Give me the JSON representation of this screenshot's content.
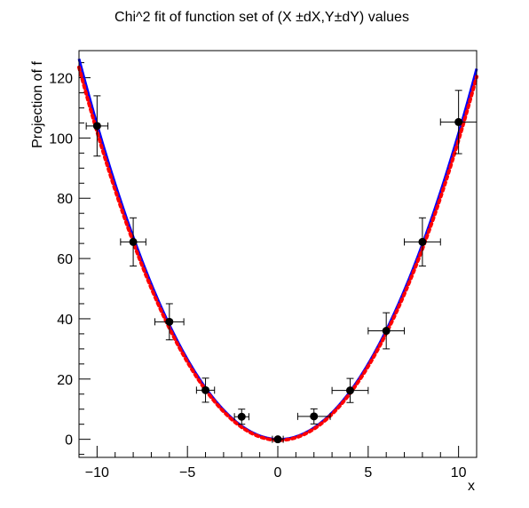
{
  "chart_data": {
    "type": "scatter",
    "title": "Chi^2 fit of function set of (X  ±dX,Y±dY) values",
    "xlabel": "x",
    "ylabel": "Projection of f",
    "xlim": [
      -11,
      11
    ],
    "ylim": [
      -6,
      129
    ],
    "xticks": [
      -10,
      -5,
      0,
      5,
      10
    ],
    "xtick_labels": [
      "−10",
      "−5",
      "0",
      "5",
      "10"
    ],
    "yticks": [
      0,
      20,
      40,
      60,
      80,
      100,
      120
    ],
    "ytick_labels": [
      "0",
      "20",
      "40",
      "60",
      "80",
      "100",
      "120"
    ],
    "grid": false,
    "legend": "none",
    "points": [
      {
        "x": -10,
        "y": 104.0,
        "ex": 0.6,
        "ey": 10.0
      },
      {
        "x": -8,
        "y": 65.5,
        "ex": 0.7,
        "ey": 8.0
      },
      {
        "x": -6,
        "y": 39.0,
        "ex": 0.8,
        "ey": 6.0
      },
      {
        "x": -4,
        "y": 16.3,
        "ex": 0.5,
        "ey": 4.0
      },
      {
        "x": -2,
        "y": 7.5,
        "ex": 0.4,
        "ey": 2.5
      },
      {
        "x": 0,
        "y": 0.0,
        "ex": 0.3,
        "ey": 0.5
      },
      {
        "x": 2,
        "y": 7.6,
        "ex": 0.9,
        "ey": 2.5
      },
      {
        "x": 4,
        "y": 16.2,
        "ex": 1.0,
        "ey": 4.0
      },
      {
        "x": 6,
        "y": 36.0,
        "ex": 1.0,
        "ey": 6.0
      },
      {
        "x": 8,
        "y": 65.5,
        "ex": 1.0,
        "ey": 8.0
      },
      {
        "x": 10,
        "y": 105.3,
        "ex": 1.0,
        "ey": 10.5
      }
    ],
    "curves": [
      {
        "color": "#0000ff",
        "style": "solid",
        "a": 1.03,
        "b": -0.15,
        "c": 0.0
      },
      {
        "color": "#ff0000",
        "style": "dotted",
        "a": 1.01,
        "b": -0.14,
        "c": -0.3
      }
    ],
    "colors": {
      "points": "#000000",
      "fit_solid": "#0000ff",
      "fit_dotted": "#ff0000"
    }
  }
}
